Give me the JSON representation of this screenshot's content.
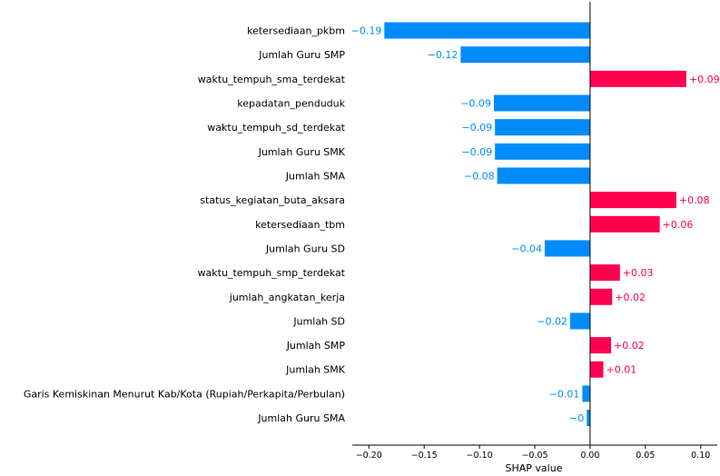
{
  "chart_data": {
    "type": "bar",
    "orientation": "horizontal",
    "xlabel": "SHAP value",
    "ylabel": "",
    "xlim": [
      -0.215,
      0.115
    ],
    "xticks": [
      -0.2,
      -0.15,
      -0.1,
      -0.05,
      0.0,
      0.05,
      0.1
    ],
    "xtick_labels": [
      "−0.20",
      "−0.15",
      "−0.10",
      "−0.05",
      "0.00",
      "0.05",
      "0.10"
    ],
    "grid": false,
    "colors": {
      "positive": "#ff0051",
      "negative": "#008bfb",
      "axis": "#000000"
    },
    "categories": [
      "ketersediaan_pkbm",
      "Jumlah Guru SMP",
      "waktu_tempuh_sma_terdekat",
      "kepadatan_penduduk",
      "waktu_tempuh_sd_terdekat",
      "Jumlah Guru SMK",
      "Jumlah SMA",
      "status_kegiatan_buta_aksara",
      "ketersediaan_tbm",
      "Jumlah Guru SD",
      "waktu_tempuh_smp_terdekat",
      "jumlah_angkatan_kerja",
      "Jumlah SD",
      "Jumlah SMP",
      "Jumlah SMK",
      "Garis Kemiskinan Menurut Kab/Kota (Rupiah/Perkapita/Perbulan)",
      "Jumlah Guru SMA"
    ],
    "values": [
      -0.186,
      -0.117,
      0.087,
      -0.087,
      -0.086,
      -0.086,
      -0.084,
      0.078,
      0.063,
      -0.041,
      0.027,
      0.02,
      -0.018,
      0.019,
      0.012,
      -0.007,
      -0.003
    ],
    "value_labels": [
      "−0.19",
      "−0.12",
      "+0.09",
      "−0.09",
      "−0.09",
      "−0.09",
      "−0.08",
      "+0.08",
      "+0.06",
      "−0.04",
      "+0.03",
      "+0.02",
      "−0.02",
      "+0.02",
      "+0.01",
      "−0.01",
      "−0"
    ]
  }
}
